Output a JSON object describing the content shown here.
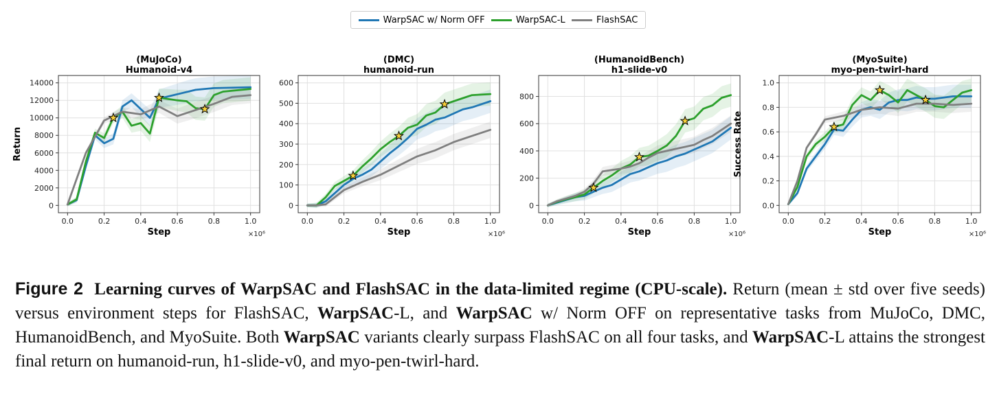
{
  "legend": {
    "items": [
      {
        "label": "WarpSAC w/ Norm OFF",
        "color": "#1f77b4"
      },
      {
        "label": "WarpSAC-L",
        "color": "#2ca02c"
      },
      {
        "label": "FlashSAC",
        "color": "#7f7f7f"
      }
    ]
  },
  "chart_data": [
    {
      "type": "line",
      "title": "(MuJoCo)",
      "subtitle": "Humanoid-v4",
      "xlabel": "Step",
      "ylabel": "Return",
      "x_multiplier": "×10⁶",
      "xlim": [
        0.0,
        1.0
      ],
      "ylim": [
        0,
        14000
      ],
      "xticks": [
        0.0,
        0.2,
        0.4,
        0.6,
        0.8,
        1.0
      ],
      "xtick_labels": [
        "0.0",
        "0.2",
        "0.4",
        "0.6",
        "0.8",
        "1.0"
      ],
      "yticks": [
        0,
        2000,
        4000,
        6000,
        8000,
        10000,
        12000,
        14000
      ],
      "ytick_labels": [
        "0",
        "2000",
        "4000",
        "6000",
        "8000",
        "10000",
        "12000",
        "14000"
      ],
      "grid": true,
      "series": [
        {
          "name": "WarpSAC w/ Norm OFF",
          "color": "#1f77b4",
          "x": [
            0,
            0.05,
            0.1,
            0.15,
            0.2,
            0.25,
            0.3,
            0.35,
            0.4,
            0.45,
            0.5,
            0.6,
            0.7,
            0.8,
            1.0
          ],
          "y": [
            100,
            600,
            4500,
            8000,
            7100,
            7600,
            11300,
            12000,
            11000,
            10000,
            12200,
            12700,
            13200,
            13400,
            13500
          ]
        },
        {
          "name": "WarpSAC-L",
          "color": "#2ca02c",
          "x": [
            0,
            0.05,
            0.1,
            0.15,
            0.2,
            0.25,
            0.3,
            0.35,
            0.4,
            0.45,
            0.5,
            0.6,
            0.65,
            0.7,
            0.75,
            0.8,
            0.85,
            1.0
          ],
          "y": [
            100,
            700,
            5000,
            8300,
            7700,
            10000,
            10700,
            9100,
            9400,
            8200,
            12300,
            12000,
            11900,
            11100,
            11000,
            12600,
            13000,
            13300
          ]
        },
        {
          "name": "FlashSAC",
          "color": "#7f7f7f",
          "x": [
            0,
            0.1,
            0.2,
            0.3,
            0.4,
            0.5,
            0.6,
            0.7,
            0.8,
            0.9,
            1.0
          ],
          "y": [
            100,
            6000,
            9700,
            10700,
            10400,
            11300,
            10200,
            10900,
            11600,
            12400,
            12600
          ]
        }
      ],
      "stars": [
        [
          0.25,
          10000
        ],
        [
          0.5,
          12300
        ],
        [
          0.75,
          11000
        ]
      ]
    },
    {
      "type": "line",
      "title": "(DMC)",
      "subtitle": "humanoid-run",
      "xlabel": "Step",
      "ylabel": "",
      "x_multiplier": "×10⁶",
      "xlim": [
        0.0,
        1.0
      ],
      "ylim": [
        0,
        600
      ],
      "xticks": [
        0.0,
        0.2,
        0.4,
        0.6,
        0.8,
        1.0
      ],
      "xtick_labels": [
        "0.0",
        "0.2",
        "0.4",
        "0.6",
        "0.8",
        "1.0"
      ],
      "yticks": [
        0,
        100,
        200,
        300,
        400,
        500,
        600
      ],
      "ytick_labels": [
        "0",
        "100",
        "200",
        "300",
        "400",
        "500",
        "600"
      ],
      "grid": true,
      "series": [
        {
          "name": "WarpSAC w/ Norm OFF",
          "color": "#1f77b4",
          "x": [
            0,
            0.05,
            0.1,
            0.15,
            0.2,
            0.25,
            0.3,
            0.35,
            0.4,
            0.45,
            0.5,
            0.55,
            0.6,
            0.65,
            0.7,
            0.75,
            0.8,
            0.85,
            0.9,
            1.0
          ],
          "y": [
            0,
            0,
            20,
            60,
            100,
            130,
            150,
            175,
            215,
            255,
            290,
            330,
            375,
            395,
            420,
            430,
            450,
            470,
            480,
            510
          ]
        },
        {
          "name": "WarpSAC-L",
          "color": "#2ca02c",
          "x": [
            0,
            0.05,
            0.1,
            0.15,
            0.2,
            0.25,
            0.3,
            0.35,
            0.4,
            0.45,
            0.5,
            0.55,
            0.6,
            0.65,
            0.7,
            0.75,
            0.8,
            0.85,
            0.9,
            1.0
          ],
          "y": [
            0,
            0,
            40,
            95,
            120,
            145,
            190,
            230,
            275,
            310,
            340,
            380,
            395,
            440,
            455,
            495,
            510,
            525,
            540,
            545
          ]
        },
        {
          "name": "FlashSAC",
          "color": "#7f7f7f",
          "x": [
            0,
            0.05,
            0.1,
            0.15,
            0.2,
            0.3,
            0.4,
            0.5,
            0.6,
            0.7,
            0.8,
            0.9,
            1.0
          ],
          "y": [
            0,
            0,
            5,
            40,
            75,
            115,
            150,
            195,
            240,
            270,
            310,
            340,
            370
          ]
        }
      ],
      "stars": [
        [
          0.25,
          145
        ],
        [
          0.5,
          340
        ],
        [
          0.75,
          495
        ]
      ]
    },
    {
      "type": "line",
      "title": "(HumanoidBench)",
      "subtitle": "h1-slide-v0",
      "xlabel": "Step",
      "ylabel": "",
      "x_multiplier": "×10⁶",
      "xlim": [
        0.0,
        1.0
      ],
      "ylim": [
        0,
        900
      ],
      "xticks": [
        0.0,
        0.2,
        0.4,
        0.6,
        0.8,
        1.0
      ],
      "xtick_labels": [
        "0.0",
        "0.2",
        "0.4",
        "0.6",
        "0.8",
        "1.0"
      ],
      "yticks": [
        0,
        200,
        400,
        600,
        800
      ],
      "ytick_labels": [
        "0",
        "200",
        "400",
        "600",
        "800"
      ],
      "grid": true,
      "series": [
        {
          "name": "WarpSAC w/ Norm OFF",
          "color": "#1f77b4",
          "x": [
            0,
            0.05,
            0.1,
            0.15,
            0.2,
            0.25,
            0.3,
            0.35,
            0.4,
            0.45,
            0.5,
            0.55,
            0.6,
            0.65,
            0.7,
            0.75,
            0.8,
            0.85,
            0.9,
            1.0
          ],
          "y": [
            0,
            20,
            40,
            60,
            70,
            100,
            130,
            150,
            190,
            230,
            250,
            280,
            310,
            330,
            360,
            380,
            410,
            440,
            470,
            570
          ]
        },
        {
          "name": "WarpSAC-L",
          "color": "#2ca02c",
          "x": [
            0,
            0.05,
            0.1,
            0.15,
            0.2,
            0.25,
            0.3,
            0.35,
            0.4,
            0.45,
            0.5,
            0.55,
            0.6,
            0.65,
            0.7,
            0.75,
            0.8,
            0.85,
            0.9,
            0.95,
            1.0
          ],
          "y": [
            0,
            25,
            45,
            60,
            80,
            130,
            180,
            220,
            270,
            300,
            355,
            365,
            400,
            440,
            510,
            620,
            640,
            710,
            735,
            790,
            810
          ]
        },
        {
          "name": "FlashSAC",
          "color": "#7f7f7f",
          "x": [
            0,
            0.05,
            0.1,
            0.15,
            0.2,
            0.25,
            0.3,
            0.35,
            0.4,
            0.45,
            0.5,
            0.55,
            0.6,
            0.65,
            0.7,
            0.75,
            0.8,
            0.85,
            0.9,
            1.0
          ],
          "y": [
            0,
            30,
            50,
            70,
            100,
            160,
            250,
            260,
            270,
            285,
            310,
            350,
            385,
            400,
            415,
            430,
            445,
            480,
            510,
            600
          ]
        }
      ],
      "stars": [
        [
          0.25,
          130
        ],
        [
          0.5,
          355
        ],
        [
          0.75,
          620
        ]
      ]
    },
    {
      "type": "line",
      "title": "(MyoSuite)",
      "subtitle": "myo-pen-twirl-hard",
      "xlabel": "Step",
      "ylabel": "Success Rate",
      "x_multiplier": "×10⁶",
      "xlim": [
        0.0,
        1.0
      ],
      "ylim": [
        0.0,
        1.0
      ],
      "xticks": [
        0.0,
        0.2,
        0.4,
        0.6,
        0.8,
        1.0
      ],
      "xtick_labels": [
        "0.0",
        "0.2",
        "0.4",
        "0.6",
        "0.8",
        "1.0"
      ],
      "yticks": [
        0.0,
        0.2,
        0.4,
        0.6,
        0.8,
        1.0
      ],
      "ytick_labels": [
        "0.0",
        "0.2",
        "0.4",
        "0.6",
        "0.8",
        "1.0"
      ],
      "grid": true,
      "series": [
        {
          "name": "WarpSAC w/ Norm OFF",
          "color": "#1f77b4",
          "x": [
            0,
            0.05,
            0.1,
            0.15,
            0.2,
            0.25,
            0.3,
            0.35,
            0.4,
            0.45,
            0.5,
            0.55,
            0.6,
            0.65,
            0.7,
            0.75,
            0.8,
            0.85,
            0.9,
            1.0
          ],
          "y": [
            0.01,
            0.1,
            0.3,
            0.4,
            0.5,
            0.62,
            0.61,
            0.7,
            0.78,
            0.8,
            0.78,
            0.84,
            0.86,
            0.86,
            0.88,
            0.87,
            0.87,
            0.88,
            0.89,
            0.89
          ]
        },
        {
          "name": "WarpSAC-L",
          "color": "#2ca02c",
          "x": [
            0,
            0.05,
            0.1,
            0.15,
            0.2,
            0.25,
            0.3,
            0.35,
            0.4,
            0.45,
            0.5,
            0.55,
            0.6,
            0.65,
            0.7,
            0.75,
            0.8,
            0.85,
            0.9,
            0.95,
            1.0
          ],
          "y": [
            0.01,
            0.15,
            0.4,
            0.5,
            0.56,
            0.64,
            0.66,
            0.82,
            0.9,
            0.86,
            0.94,
            0.9,
            0.84,
            0.94,
            0.9,
            0.86,
            0.81,
            0.8,
            0.86,
            0.92,
            0.94
          ]
        },
        {
          "name": "FlashSAC",
          "color": "#7f7f7f",
          "x": [
            0,
            0.05,
            0.1,
            0.15,
            0.2,
            0.3,
            0.4,
            0.5,
            0.6,
            0.7,
            0.8,
            0.9,
            1.0
          ],
          "y": [
            0.01,
            0.2,
            0.47,
            0.58,
            0.7,
            0.73,
            0.78,
            0.8,
            0.79,
            0.83,
            0.83,
            0.82,
            0.83
          ]
        }
      ],
      "stars": [
        [
          0.25,
          0.64
        ],
        [
          0.5,
          0.94
        ],
        [
          0.75,
          0.86
        ]
      ]
    }
  ],
  "caption": {
    "figure_label": "Figure 2",
    "title": "Learning curves of WarpSAC and FlashSAC in the data-limited regime (CPU-scale).",
    "seg1": "Return (mean ± std over five seeds) versus environment steps for FlashSAC, ",
    "bold1": "WarpSAC",
    "seg2": "-L, and ",
    "bold2": "WarpSAC",
    "seg3": " w/ Norm OFF on representative tasks from MuJoCo, DMC, HumanoidBench, and MyoSuite. Both ",
    "bold3": "WarpSAC",
    "seg4": " variants clearly surpass FlashSAC on all four tasks, and ",
    "bold4": "WarpSAC",
    "seg5": "-L attains the strongest final return on humanoid-run, h1-slide-v0, and myo-pen-twirl-hard."
  }
}
